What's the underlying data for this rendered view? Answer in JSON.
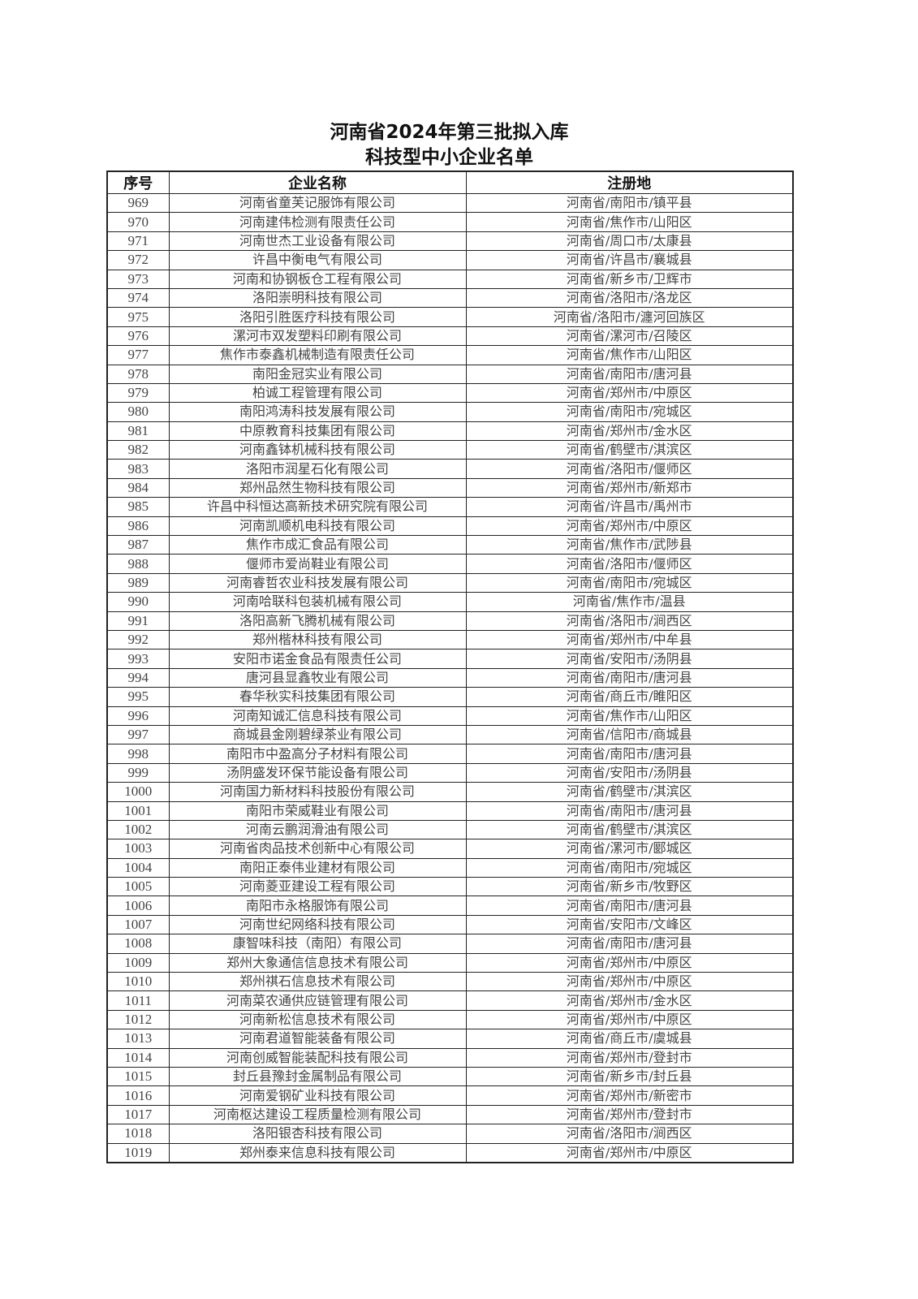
{
  "title": {
    "line1": "河南省2024年第三批拟入库",
    "line2": "科技型中小企业名单"
  },
  "table": {
    "headers": [
      "序号",
      "企业名称",
      "注册地"
    ],
    "rows": [
      [
        "969",
        "河南省童芙记服饰有限公司",
        "河南省/南阳市/镇平县"
      ],
      [
        "970",
        "河南建伟检测有限责任公司",
        "河南省/焦作市/山阳区"
      ],
      [
        "971",
        "河南世杰工业设备有限公司",
        "河南省/周口市/太康县"
      ],
      [
        "972",
        "许昌中衡电气有限公司",
        "河南省/许昌市/襄城县"
      ],
      [
        "973",
        "河南和协钢板仓工程有限公司",
        "河南省/新乡市/卫辉市"
      ],
      [
        "974",
        "洛阳崇明科技有限公司",
        "河南省/洛阳市/洛龙区"
      ],
      [
        "975",
        "洛阳引胜医疗科技有限公司",
        "河南省/洛阳市/瀍河回族区"
      ],
      [
        "976",
        "漯河市双发塑料印刷有限公司",
        "河南省/漯河市/召陵区"
      ],
      [
        "977",
        "焦作市泰鑫机械制造有限责任公司",
        "河南省/焦作市/山阳区"
      ],
      [
        "978",
        "南阳金冠实业有限公司",
        "河南省/南阳市/唐河县"
      ],
      [
        "979",
        "柏诚工程管理有限公司",
        "河南省/郑州市/中原区"
      ],
      [
        "980",
        "南阳鸿涛科技发展有限公司",
        "河南省/南阳市/宛城区"
      ],
      [
        "981",
        "中原教育科技集团有限公司",
        "河南省/郑州市/金水区"
      ],
      [
        "982",
        "河南鑫钵机械科技有限公司",
        "河南省/鹤壁市/淇滨区"
      ],
      [
        "983",
        "洛阳市润星石化有限公司",
        "河南省/洛阳市/偃师区"
      ],
      [
        "984",
        "郑州品然生物科技有限公司",
        "河南省/郑州市/新郑市"
      ],
      [
        "985",
        "许昌中科恒达高新技术研究院有限公司",
        "河南省/许昌市/禹州市"
      ],
      [
        "986",
        "河南凯顺机电科技有限公司",
        "河南省/郑州市/中原区"
      ],
      [
        "987",
        "焦作市成汇食品有限公司",
        "河南省/焦作市/武陟县"
      ],
      [
        "988",
        "偃师市爱尚鞋业有限公司",
        "河南省/洛阳市/偃师区"
      ],
      [
        "989",
        "河南睿哲农业科技发展有限公司",
        "河南省/南阳市/宛城区"
      ],
      [
        "990",
        "河南哈联科包装机械有限公司",
        "河南省/焦作市/温县"
      ],
      [
        "991",
        "洛阳高新飞腾机械有限公司",
        "河南省/洛阳市/涧西区"
      ],
      [
        "992",
        "郑州楷林科技有限公司",
        "河南省/郑州市/中牟县"
      ],
      [
        "993",
        "安阳市诺金食品有限责任公司",
        "河南省/安阳市/汤阴县"
      ],
      [
        "994",
        "唐河县显鑫牧业有限公司",
        "河南省/南阳市/唐河县"
      ],
      [
        "995",
        "春华秋实科技集团有限公司",
        "河南省/商丘市/睢阳区"
      ],
      [
        "996",
        "河南知诚汇信息科技有限公司",
        "河南省/焦作市/山阳区"
      ],
      [
        "997",
        "商城县金刚碧绿茶业有限公司",
        "河南省/信阳市/商城县"
      ],
      [
        "998",
        "南阳市中盈高分子材料有限公司",
        "河南省/南阳市/唐河县"
      ],
      [
        "999",
        "汤阴盛发环保节能设备有限公司",
        "河南省/安阳市/汤阴县"
      ],
      [
        "1000",
        "河南国力新材料科技股份有限公司",
        "河南省/鹤壁市/淇滨区"
      ],
      [
        "1001",
        "南阳市荣威鞋业有限公司",
        "河南省/南阳市/唐河县"
      ],
      [
        "1002",
        "河南云鹏润滑油有限公司",
        "河南省/鹤壁市/淇滨区"
      ],
      [
        "1003",
        "河南省肉品技术创新中心有限公司",
        "河南省/漯河市/郾城区"
      ],
      [
        "1004",
        "南阳正泰伟业建材有限公司",
        "河南省/南阳市/宛城区"
      ],
      [
        "1005",
        "河南菱亚建设工程有限公司",
        "河南省/新乡市/牧野区"
      ],
      [
        "1006",
        "南阳市永格服饰有限公司",
        "河南省/南阳市/唐河县"
      ],
      [
        "1007",
        "河南世纪网络科技有限公司",
        "河南省/安阳市/文峰区"
      ],
      [
        "1008",
        "康智味科技（南阳）有限公司",
        "河南省/南阳市/唐河县"
      ],
      [
        "1009",
        "郑州大象通信信息技术有限公司",
        "河南省/郑州市/中原区"
      ],
      [
        "1010",
        "郑州祺石信息技术有限公司",
        "河南省/郑州市/中原区"
      ],
      [
        "1011",
        "河南菜农通供应链管理有限公司",
        "河南省/郑州市/金水区"
      ],
      [
        "1012",
        "河南新松信息技术有限公司",
        "河南省/郑州市/中原区"
      ],
      [
        "1013",
        "河南君道智能装备有限公司",
        "河南省/商丘市/虞城县"
      ],
      [
        "1014",
        "河南创威智能装配科技有限公司",
        "河南省/郑州市/登封市"
      ],
      [
        "1015",
        "封丘县豫封金属制品有限公司",
        "河南省/新乡市/封丘县"
      ],
      [
        "1016",
        "河南爱钢矿业科技有限公司",
        "河南省/郑州市/新密市"
      ],
      [
        "1017",
        "河南枢达建设工程质量检测有限公司",
        "河南省/郑州市/登封市"
      ],
      [
        "1018",
        "洛阳银杏科技有限公司",
        "河南省/洛阳市/涧西区"
      ],
      [
        "1019",
        "郑州泰来信息科技有限公司",
        "河南省/郑州市/中原区"
      ]
    ]
  }
}
